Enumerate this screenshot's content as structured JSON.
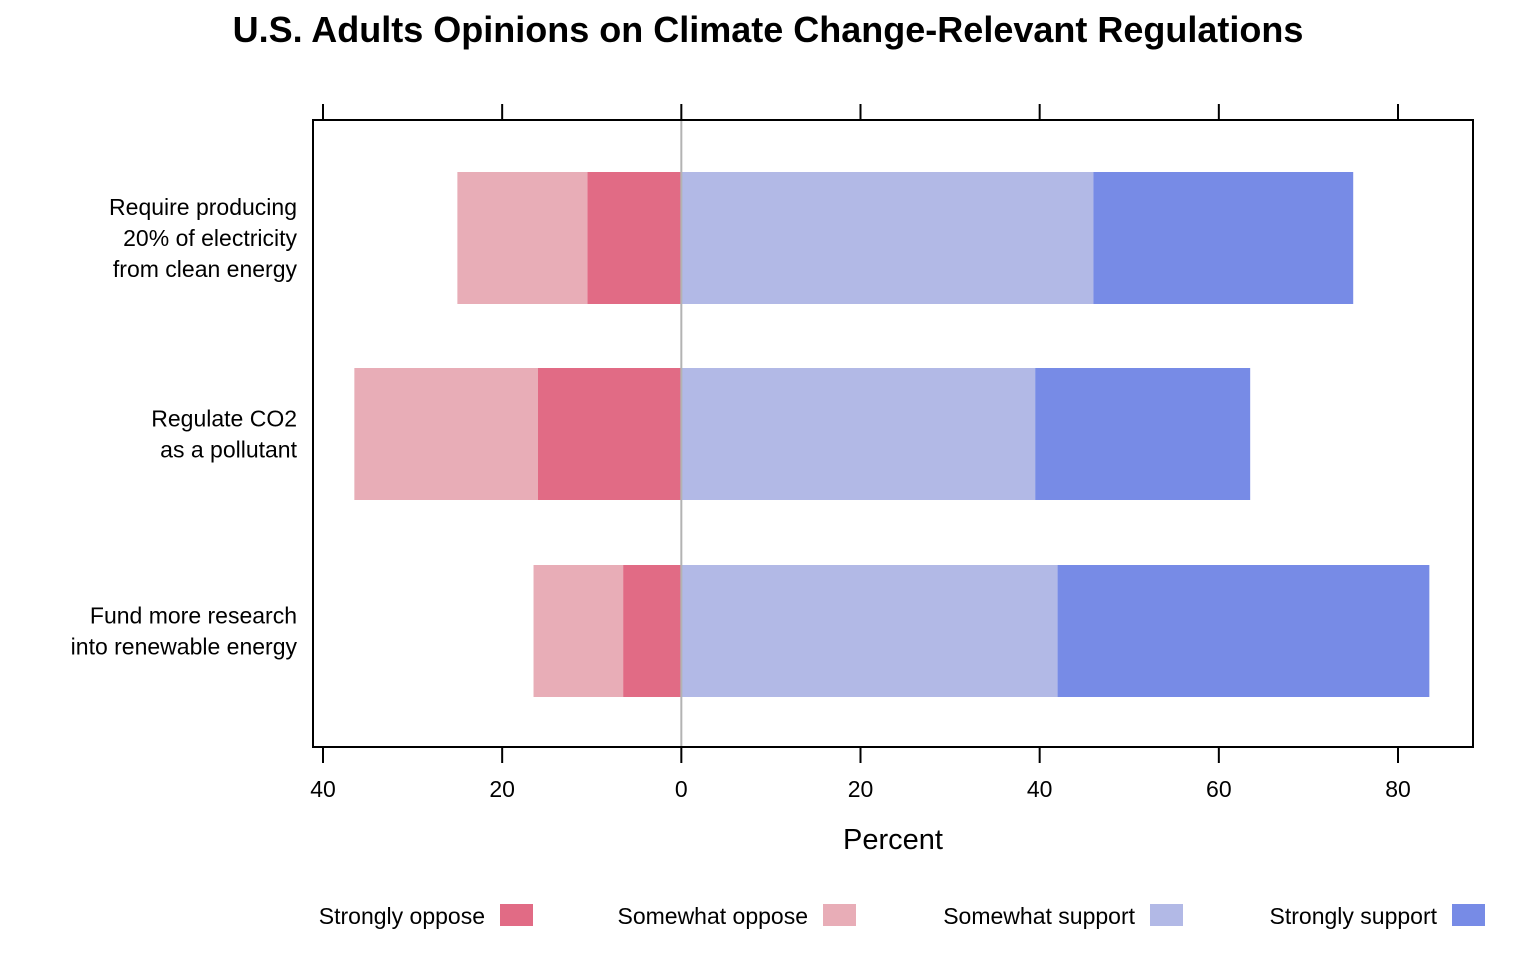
{
  "chart_data": {
    "type": "bar",
    "orientation": "horizontal",
    "layout": "diverging-stacked",
    "title": "U.S. Adults Opinions on Climate Change-Relevant Regulations",
    "xlabel": "Percent",
    "ylabel": "",
    "xlim": [
      -40,
      80
    ],
    "ticks": [
      -40,
      -20,
      0,
      20,
      40,
      60,
      80
    ],
    "tick_labels": [
      "40",
      "20",
      "0",
      "20",
      "40",
      "60",
      "80"
    ],
    "categories": [
      {
        "lines": [
          "Require producing",
          "20% of electricity",
          "from clean energy"
        ]
      },
      {
        "lines": [
          "Regulate CO2",
          "as a pollutant"
        ]
      },
      {
        "lines": [
          "Fund more research",
          "into renewable energy"
        ]
      }
    ],
    "series": [
      {
        "name": "Strongly oppose",
        "side": "negative",
        "color": "#E16B85",
        "values": [
          10.5,
          16,
          6.5
        ]
      },
      {
        "name": "Somewhat oppose",
        "side": "negative",
        "color": "#E8ADB7",
        "values": [
          14.5,
          20.5,
          10
        ]
      },
      {
        "name": "Somewhat support",
        "side": "positive",
        "color": "#B2B9E6",
        "values": [
          46,
          39.5,
          42
        ]
      },
      {
        "name": "Strongly support",
        "side": "positive",
        "color": "#778BE6",
        "values": [
          29,
          24,
          41.5
        ]
      }
    ],
    "zero_line_color": "#B3B3B3",
    "legend_position": "bottom",
    "grid": false
  }
}
